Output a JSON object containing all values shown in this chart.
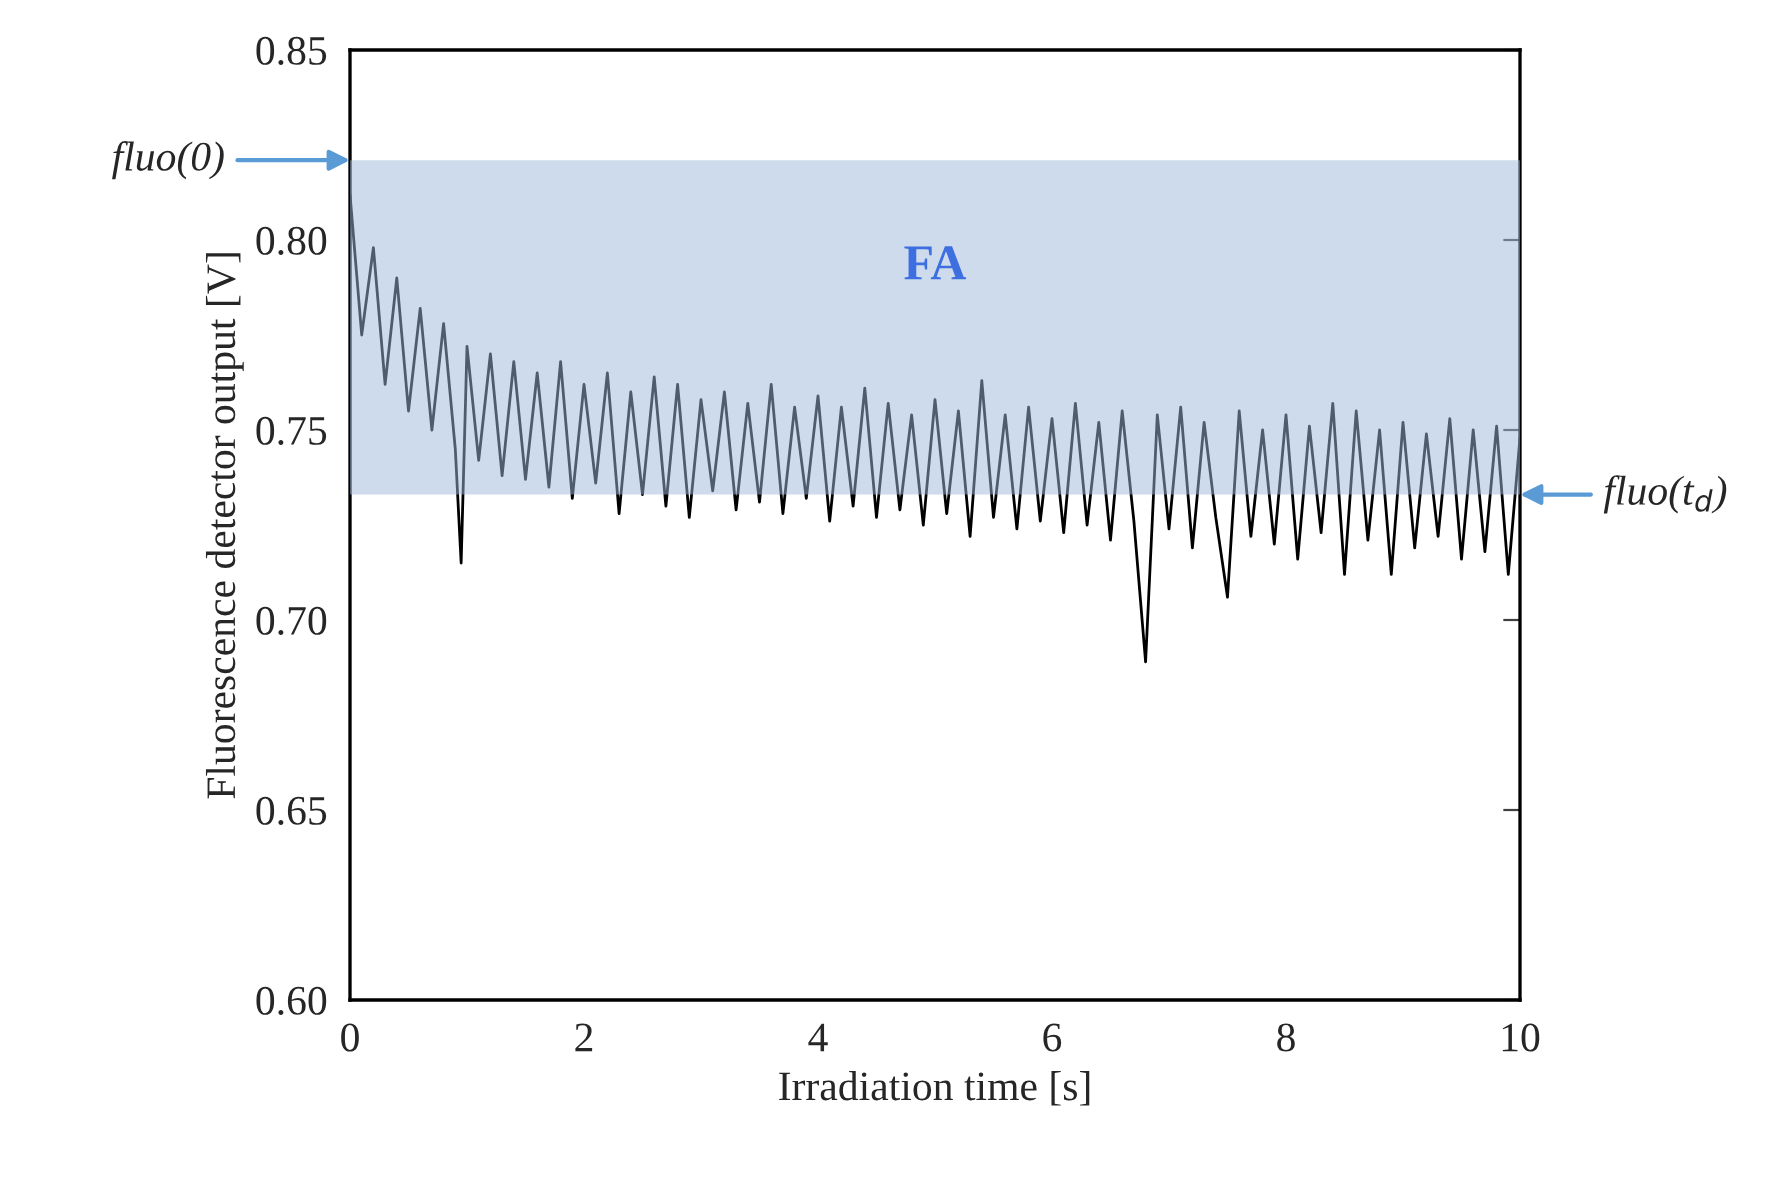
{
  "chart_data": {
    "type": "line",
    "xlabel": "Irradiation time [s]",
    "ylabel": "Fluorescence detector output [V]",
    "xlim": [
      0,
      10
    ],
    "xticks": [
      0,
      2,
      4,
      6,
      8,
      10
    ],
    "ylim": [
      0.6,
      0.85
    ],
    "yticks": [
      {
        "value": 0.6,
        "label": "0.60"
      },
      {
        "value": 0.65,
        "label": "0.65"
      },
      {
        "value": 0.7,
        "label": "0.70"
      },
      {
        "value": 0.75,
        "label": "0.75"
      },
      {
        "value": 0.8,
        "label": "0.80"
      },
      {
        "value": 0.85,
        "label": "0.85"
      }
    ],
    "grid": false,
    "line_style": "solid",
    "series": [
      {
        "color": "#000000",
        "x": [
          0.0,
          0.1,
          0.2,
          0.3,
          0.4,
          0.5,
          0.6,
          0.7,
          0.8,
          0.9,
          0.95,
          1.0,
          1.1,
          1.2,
          1.3,
          1.4,
          1.5,
          1.6,
          1.7,
          1.8,
          1.9,
          2.0,
          2.1,
          2.2,
          2.3,
          2.4,
          2.5,
          2.6,
          2.7,
          2.8,
          2.9,
          3.0,
          3.1,
          3.2,
          3.3,
          3.4,
          3.5,
          3.6,
          3.7,
          3.8,
          3.9,
          4.0,
          4.1,
          4.2,
          4.3,
          4.4,
          4.5,
          4.6,
          4.7,
          4.8,
          4.9,
          5.0,
          5.1,
          5.2,
          5.3,
          5.4,
          5.5,
          5.6,
          5.7,
          5.8,
          5.9,
          6.0,
          6.1,
          6.2,
          6.3,
          6.4,
          6.5,
          6.6,
          6.7,
          6.8,
          6.9,
          7.0,
          7.1,
          7.2,
          7.3,
          7.4,
          7.5,
          7.6,
          7.7,
          7.8,
          7.9,
          8.0,
          8.1,
          8.2,
          8.3,
          8.4,
          8.5,
          8.6,
          8.7,
          8.8,
          8.9,
          9.0,
          9.1,
          9.2,
          9.3,
          9.4,
          9.5,
          9.6,
          9.7,
          9.8,
          9.9,
          10.0
        ],
        "values": [
          0.812,
          0.775,
          0.798,
          0.762,
          0.79,
          0.755,
          0.782,
          0.75,
          0.778,
          0.745,
          0.715,
          0.772,
          0.742,
          0.77,
          0.738,
          0.768,
          0.737,
          0.765,
          0.735,
          0.768,
          0.732,
          0.762,
          0.736,
          0.765,
          0.728,
          0.76,
          0.733,
          0.764,
          0.73,
          0.762,
          0.727,
          0.758,
          0.734,
          0.76,
          0.729,
          0.757,
          0.731,
          0.762,
          0.728,
          0.756,
          0.732,
          0.759,
          0.726,
          0.756,
          0.73,
          0.761,
          0.727,
          0.757,
          0.729,
          0.754,
          0.725,
          0.758,
          0.728,
          0.755,
          0.722,
          0.763,
          0.727,
          0.754,
          0.724,
          0.756,
          0.726,
          0.753,
          0.723,
          0.757,
          0.725,
          0.752,
          0.721,
          0.755,
          0.726,
          0.689,
          0.754,
          0.724,
          0.756,
          0.719,
          0.752,
          0.727,
          0.706,
          0.755,
          0.722,
          0.75,
          0.72,
          0.754,
          0.716,
          0.751,
          0.723,
          0.757,
          0.712,
          0.755,
          0.721,
          0.75,
          0.712,
          0.752,
          0.719,
          0.749,
          0.722,
          0.753,
          0.716,
          0.75,
          0.718,
          0.751,
          0.712,
          0.748
        ]
      }
    ],
    "bands": [
      {
        "axis": "y",
        "from": 0.733,
        "to": 0.821,
        "label": "FA",
        "color": "#9db8dc"
      }
    ],
    "annotations": [
      {
        "text": "fluo(0)",
        "x": 0,
        "y": 0.821
      },
      {
        "text": "fluo(t$_{d}$)",
        "x": 10,
        "y": 0.733
      }
    ]
  }
}
